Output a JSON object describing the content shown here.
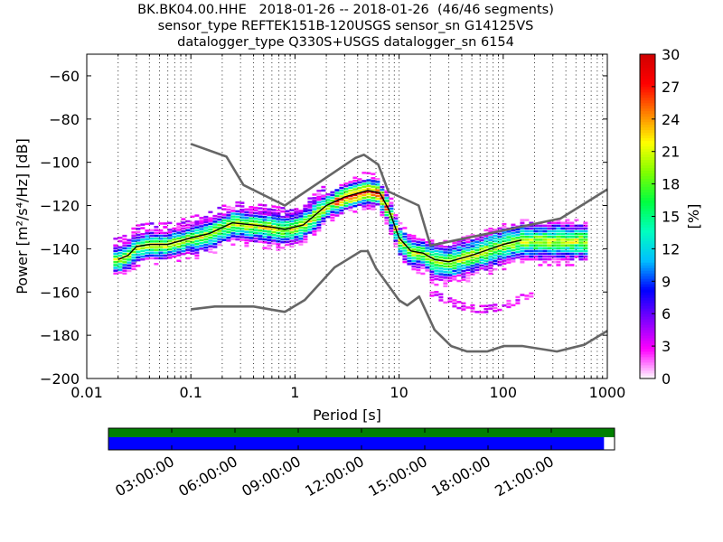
{
  "header": {
    "title_line1": "BK.BK04.00.HHE   2018-01-26 -- 2018-01-26  (46/46 segments)",
    "title_line2": "sensor_type REFTEK151B-120USGS sensor_sn G14125VS",
    "title_line3": "datalogger_type Q330S+USGS datalogger_sn 6154"
  },
  "chart_data": [
    {
      "type": "heatmap",
      "title": "BK.BK04.00.HHE   2018-01-26 -- 2018-01-26  (46/46 segments)",
      "xlabel": "Period [s]",
      "ylabel": "Power [m²/s⁴/Hz] [dB]",
      "x_scale": "log",
      "xlim": [
        0.01,
        1000
      ],
      "ylim": [
        -200,
        -50
      ],
      "x_ticks": [
        0.01,
        0.1,
        1,
        10,
        100,
        1000
      ],
      "x_tick_labels": [
        "0.01",
        "0.1",
        "1",
        "10",
        "100",
        "1000"
      ],
      "y_ticks": [
        -200,
        -180,
        -160,
        -140,
        -120,
        -100,
        -80,
        -60
      ],
      "y_tick_labels": [
        "−200",
        "−180",
        "−160",
        "−140",
        "−120",
        "−100",
        "−80",
        "−60"
      ],
      "grid": "vertical dotted",
      "colorbar": {
        "label": "[%]",
        "range": [
          0,
          30
        ],
        "ticks": [
          0,
          3,
          6,
          9,
          12,
          15,
          18,
          21,
          24,
          27,
          30
        ],
        "tick_labels": [
          "0",
          "3",
          "6",
          "9",
          "12",
          "15",
          "18",
          "21",
          "24",
          "27",
          "30"
        ],
        "colors": [
          "#ffffff",
          "#ff00ff",
          "#7f00ff",
          "#0000ff",
          "#00bfff",
          "#00ffbf",
          "#00ff40",
          "#80ff00",
          "#ffff00",
          "#ff8000",
          "#ff0000",
          "#d00000"
        ]
      },
      "median_curve": {
        "x": [
          0.02,
          0.025,
          0.03,
          0.04,
          0.06,
          0.1,
          0.15,
          0.25,
          0.4,
          0.6,
          0.8,
          1.2,
          2,
          3,
          5,
          6.5,
          8,
          10,
          13,
          17,
          22,
          30,
          50,
          100,
          150
        ],
        "y": [
          -145,
          -143,
          -139,
          -138,
          -138,
          -135,
          -133,
          -128,
          -129,
          -130,
          -131,
          -129,
          -120,
          -116,
          -113,
          -114,
          -122,
          -135,
          -141,
          -142,
          -145,
          -146,
          -143,
          -138,
          -136
        ]
      },
      "nhnm": {
        "x": [
          0.1,
          0.22,
          0.32,
          0.8,
          3.8,
          4.6,
          6.3,
          7.9,
          15.4,
          20,
          354.8,
          1000
        ],
        "y": [
          -91.5,
          -97.4,
          -110.5,
          -120,
          -98,
          -96.5,
          -101,
          -113.5,
          -120,
          -138.5,
          -126,
          -112.5
        ]
      },
      "nlnm": {
        "x": [
          0.1,
          0.17,
          0.4,
          0.8,
          1.24,
          2.4,
          4.3,
          5,
          6,
          10,
          12,
          15.6,
          21.9,
          31.6,
          45,
          70,
          101,
          154,
          328,
          600,
          1000
        ],
        "y": [
          -168,
          -166.7,
          -166.7,
          -169.2,
          -163.7,
          -148.6,
          -141.1,
          -141.1,
          -149,
          -163.8,
          -166.2,
          -162.1,
          -177.5,
          -185,
          -187.5,
          -187.5,
          -185,
          -185,
          -187.5,
          -184.4,
          -178
        ]
      }
    },
    {
      "type": "bar",
      "description_kind": "data coverage timeline",
      "x_tick_labels": [
        "03:00:00",
        "06:00:00",
        "09:00:00",
        "12:00:00",
        "15:00:00",
        "18:00:00",
        "21:00:00"
      ],
      "x_tick_hours": [
        3,
        6,
        9,
        12,
        15,
        18,
        21
      ],
      "xlim_hours": [
        0,
        24
      ],
      "series": [
        {
          "color": "#008000",
          "start_hour": 0,
          "end_hour": 24
        },
        {
          "color": "#0000ff",
          "start_hour": 0,
          "end_hour": 23.5
        }
      ]
    }
  ]
}
